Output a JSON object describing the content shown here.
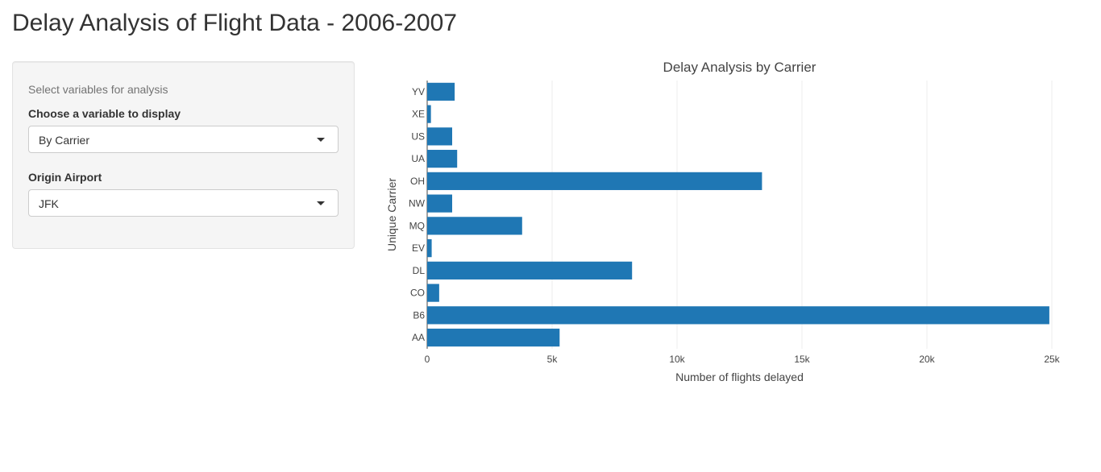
{
  "header": {
    "title": "Delay Analysis of Flight Data - 2006-2007"
  },
  "sidebar": {
    "help_text": "Select variables for analysis",
    "variable_label": "Choose a variable to display",
    "variable_value": "By Carrier",
    "origin_label": "Origin Airport",
    "origin_value": "JFK"
  },
  "chart_data": {
    "type": "bar",
    "orientation": "horizontal",
    "title": "Delay Analysis by Carrier",
    "xlabel": "Number of flights delayed",
    "ylabel": "Unique Carrier",
    "categories": [
      "AA",
      "B6",
      "CO",
      "DL",
      "EV",
      "MQ",
      "NW",
      "OH",
      "UA",
      "US",
      "XE",
      "YV"
    ],
    "values": [
      5300,
      24900,
      480,
      8200,
      180,
      3800,
      1000,
      13400,
      1200,
      1000,
      150,
      1100
    ],
    "xlim": [
      0,
      25000
    ],
    "xticks": [
      0,
      5000,
      10000,
      15000,
      20000,
      25000
    ],
    "xtick_labels": [
      "0",
      "5k",
      "10k",
      "15k",
      "20k",
      "25k"
    ],
    "grid": true,
    "bar_color": "#1f77b4"
  }
}
